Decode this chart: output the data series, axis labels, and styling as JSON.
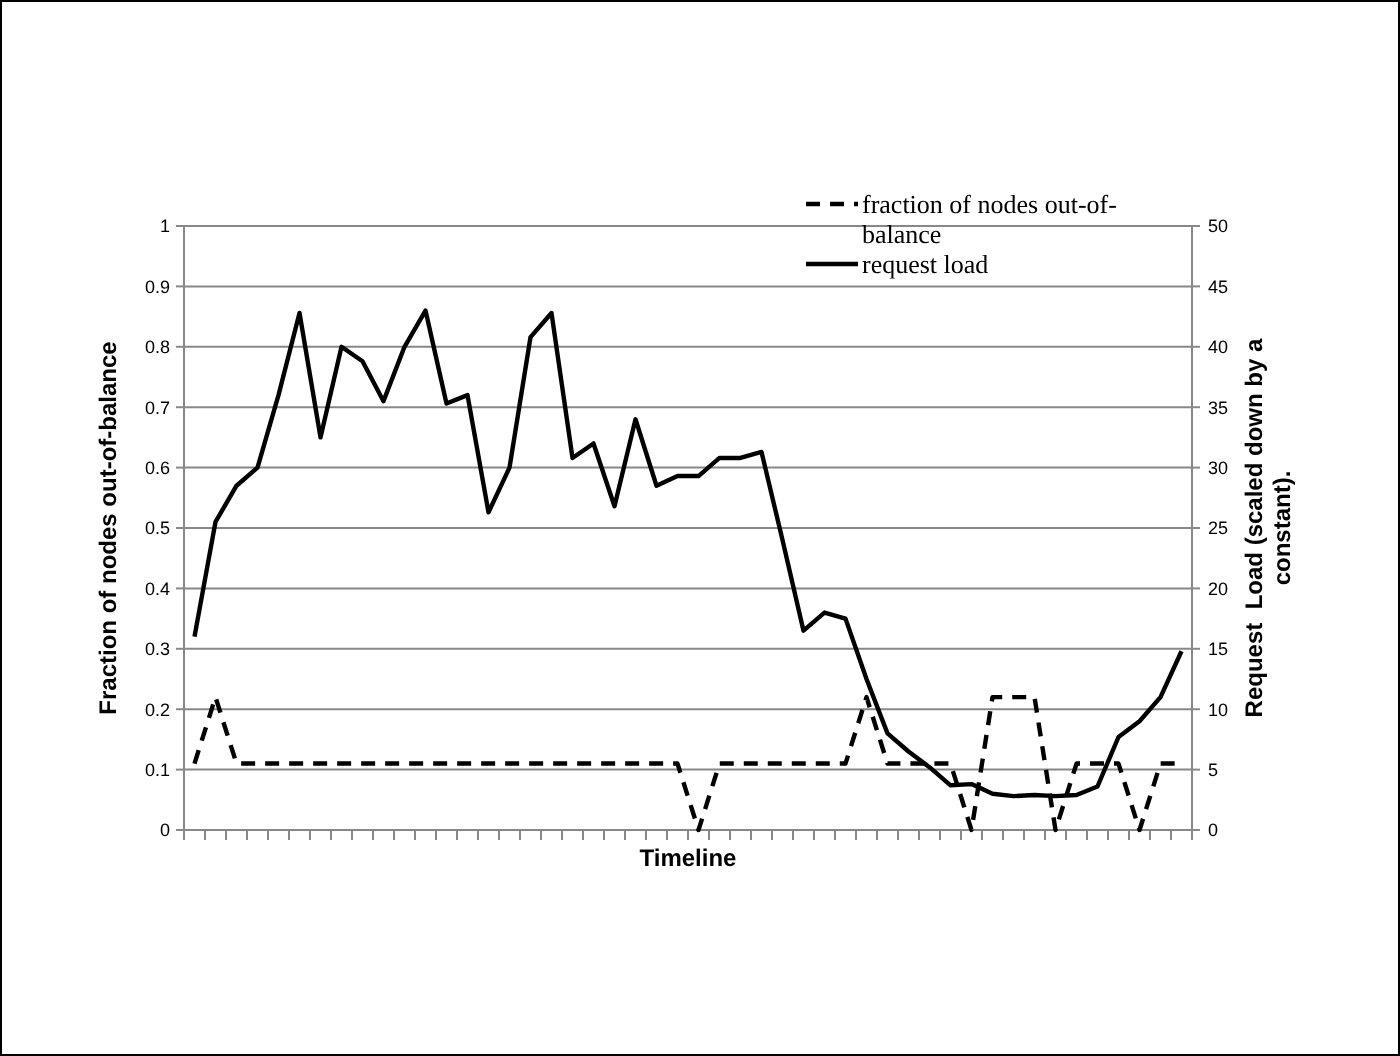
{
  "chart_data": {
    "type": "line",
    "xlabel": "Timeline",
    "ylabel": "Fraction of nodes out-of-balance",
    "y2label": "Request  Load (scaled down by a constant).",
    "categories": [
      null,
      null,
      null,
      null,
      null,
      null,
      null,
      null,
      null,
      null,
      null,
      null,
      null,
      null,
      null,
      null,
      null,
      null,
      null,
      null,
      null,
      null,
      null,
      null,
      null,
      null,
      null,
      null,
      null,
      null,
      null,
      null,
      null,
      null,
      null,
      null,
      null,
      null,
      null,
      null,
      null,
      null,
      null,
      null,
      null,
      null,
      null,
      null
    ],
    "series": [
      {
        "name": "fraction of nodes out-of-balance",
        "color": "#000000",
        "line_style": "dashed",
        "values": [
          0.11,
          0.22,
          0.11,
          0.11,
          0.11,
          0.11,
          0.11,
          0.11,
          0.11,
          0.11,
          0.11,
          0.11,
          0.11,
          0.11,
          0.11,
          0.11,
          0.11,
          0.11,
          0.11,
          0.11,
          0.11,
          0.11,
          0.11,
          0.11,
          0,
          0.11,
          0.11,
          0.11,
          0.11,
          0.11,
          0.11,
          0.11,
          0.22,
          0.11,
          0.11,
          0.11,
          0.11,
          0,
          0.22,
          0.22,
          0.22,
          0,
          0.11,
          0.11,
          0.11,
          0,
          0.11,
          0.11
        ]
      },
      {
        "name": "request load",
        "color": "#000000",
        "line_style": "solid",
        "axis": "y2",
        "values": [
          16,
          25.5,
          28.5,
          30,
          36,
          42.8,
          32.5,
          40,
          38.8,
          35.5,
          40,
          43,
          35.3,
          36,
          26.3,
          30,
          40.8,
          42.8,
          30.8,
          32,
          26.8,
          34,
          28.5,
          29.3,
          29.3,
          30.8,
          30.8,
          31.3,
          24,
          16.5,
          18,
          17.5,
          12.5,
          8,
          6.5,
          5.2,
          3.7,
          3.8,
          3,
          2.8,
          2.9,
          2.8,
          2.9,
          3.6,
          7.7,
          9,
          11,
          14.8
        ]
      }
    ],
    "ylim": [
      0,
      1
    ],
    "yticks": [
      0,
      0.1,
      0.2,
      0.3,
      0.4,
      0.5,
      0.6,
      0.7,
      0.8,
      0.9,
      1
    ],
    "y2lim": [
      0,
      50
    ],
    "y2ticks": [
      0,
      5,
      10,
      15,
      20,
      25,
      30,
      35,
      40,
      45,
      50
    ],
    "grid": "y",
    "legend": "top right",
    "marker": "none"
  }
}
